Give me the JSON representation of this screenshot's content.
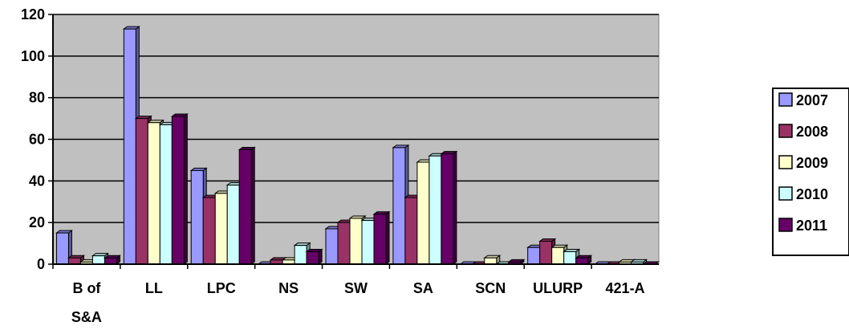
{
  "chart_data": {
    "type": "bar",
    "style": "3d-clustered-column",
    "categories": [
      "B of S&A",
      "LL",
      "LPC",
      "NS",
      "SW",
      "SA",
      "SCN",
      "ULURP",
      "421-A"
    ],
    "series": [
      {
        "name": "2007",
        "values": [
          15,
          113,
          45,
          0,
          17,
          56,
          0,
          8,
          0
        ]
      },
      {
        "name": "2008",
        "values": [
          3,
          70,
          32,
          2,
          20,
          32,
          0,
          11,
          0
        ]
      },
      {
        "name": "2009",
        "values": [
          1,
          68,
          34,
          2,
          22,
          49,
          3,
          8,
          1
        ]
      },
      {
        "name": "2010",
        "values": [
          4,
          67,
          38,
          9,
          21,
          52,
          0,
          6,
          1
        ]
      },
      {
        "name": "2011",
        "values": [
          3,
          71,
          55,
          6,
          24,
          53,
          1,
          3,
          0
        ]
      }
    ],
    "ylim": [
      0,
      120
    ],
    "yticks": [
      0,
      20,
      40,
      60,
      80,
      100,
      120
    ],
    "grid": true,
    "legend_position": "right",
    "colors": {
      "2007": "#9999ff",
      "2008": "#993366",
      "2009": "#ffffcc",
      "2010": "#ccffff",
      "2011": "#660066"
    },
    "plot_background": "#c0c0c0"
  }
}
